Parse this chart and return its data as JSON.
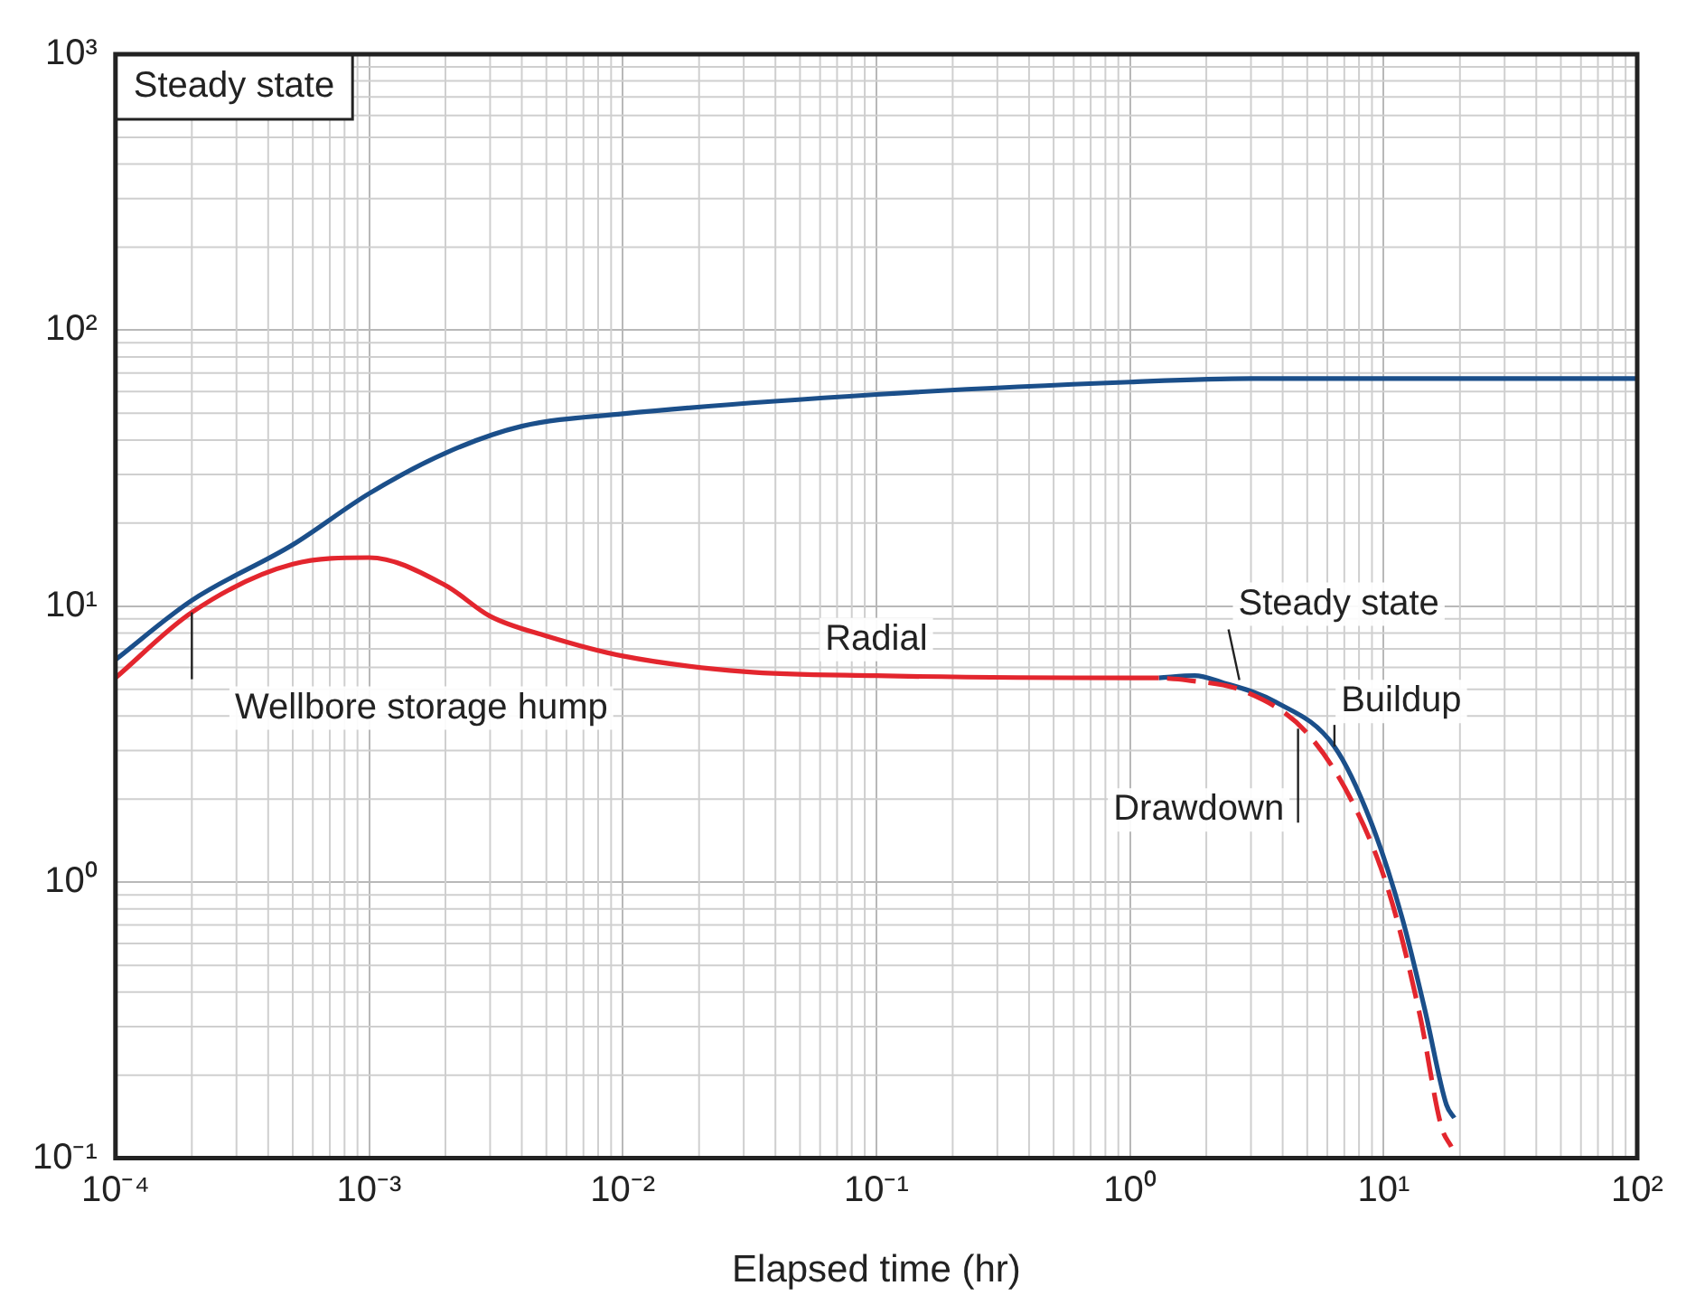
{
  "chart_data": {
    "type": "line",
    "xlabel": "Elapsed time (hr)",
    "log": "xy",
    "grid": true,
    "legend": false,
    "marker": "none",
    "xlim": [
      0.0001,
      100
    ],
    "ylim": [
      0.1,
      1000
    ],
    "xticks": [
      {
        "value": 0.0001,
        "label": "10⁻⁴"
      },
      {
        "value": 0.001,
        "label": "10⁻³"
      },
      {
        "value": 0.01,
        "label": "10⁻²"
      },
      {
        "value": 0.1,
        "label": "10⁻¹"
      },
      {
        "value": 1,
        "label": "10⁰"
      },
      {
        "value": 10,
        "label": "10¹"
      },
      {
        "value": 100,
        "label": "10²"
      }
    ],
    "yticks": [
      {
        "value": 0.1,
        "label": "10⁻¹"
      },
      {
        "value": 1,
        "label": "10⁰"
      },
      {
        "value": 10,
        "label": "10¹"
      },
      {
        "value": 100,
        "label": "10²"
      },
      {
        "value": 1000,
        "label": "10³"
      }
    ],
    "series": [
      {
        "color": "#1b4f8a",
        "line_style": "solid",
        "x": [
          0.0001,
          0.0002,
          0.0005,
          0.001,
          0.002,
          0.004,
          0.01,
          0.1,
          1,
          3,
          100
        ],
        "values": [
          6.4,
          10.5,
          16.7,
          25.6,
          35.9,
          44.9,
          49.8,
          58.5,
          64.9,
          66.8,
          66.8
        ]
      },
      {
        "color": "#e3262e",
        "line_style": "solid",
        "x": [
          0.0001,
          0.0002,
          0.0005,
          0.001,
          0.002,
          0.003,
          0.005,
          0.01,
          0.03,
          0.1,
          1,
          1.3
        ],
        "values": [
          5.5,
          9.5,
          14.2,
          15,
          11.9,
          9.2,
          7.8,
          6.6,
          5.8,
          5.6,
          5.5,
          5.5
        ]
      },
      {
        "color": "#e3262e",
        "line_style": "dashed",
        "x": [
          1.3,
          1.66,
          2.85,
          4.95,
          7.6,
          10.5,
          13.9,
          16.9,
          18.5
        ],
        "values": [
          5.5,
          5.4,
          4.9,
          3.5,
          1.92,
          0.92,
          0.33,
          0.13,
          0.11
        ]
      },
      {
        "color": "#1b4f8a",
        "line_style": "solid",
        "x": [
          1.3,
          1.8,
          2.3,
          3.75,
          6.4,
          8.9,
          11.8,
          14.6,
          17.7,
          19
        ],
        "values": [
          5.5,
          5.6,
          5.3,
          4.5,
          3.1,
          1.66,
          0.75,
          0.34,
          0.156,
          0.14
        ]
      }
    ],
    "annotations": [
      "Steady state",
      {
        "text": "Wellbore storage hump",
        "x": 0.0002,
        "y": 9.5
      },
      {
        "text": "Radial",
        "x": 0.1,
        "y": 5.6
      },
      {
        "text": "Steady state",
        "x": 2.7,
        "y": 5.4
      },
      {
        "text": "Buildup",
        "x": 6.4,
        "y": 3.1
      },
      {
        "text": "Drawdown",
        "x": 4.6,
        "y": 3.6
      }
    ]
  }
}
